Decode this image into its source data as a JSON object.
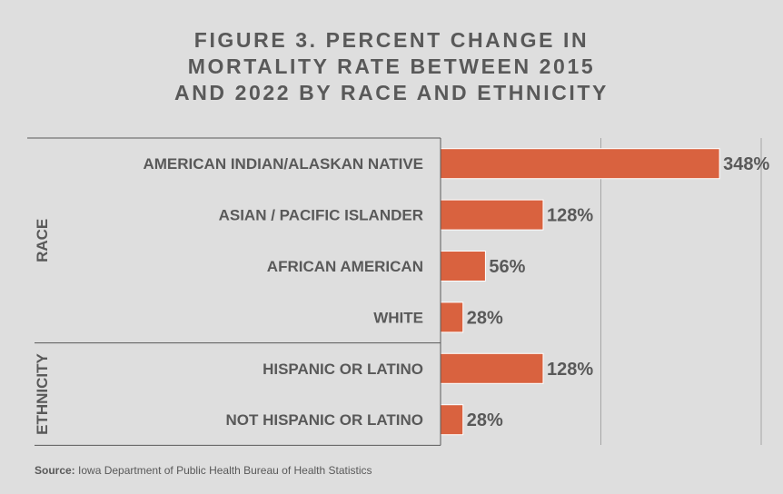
{
  "title_lines": [
    "FIGURE 3. PERCENT CHANGE IN",
    "MORTALITY RATE BETWEEN 2015",
    "AND 2022 BY RACE AND ETHNICITY"
  ],
  "source": {
    "label": "Source:",
    "text": " Iowa Department of Public Health Bureau of Health Statistics"
  },
  "colors": {
    "background": "#dedede",
    "bar": "#d9623f",
    "text": "#595959",
    "grid": "#a6a6a6"
  },
  "chart_data": {
    "type": "bar",
    "orientation": "horizontal",
    "groups": [
      {
        "name": "RACE",
        "categories": [
          "AMERICAN INDIAN/ALASKAN NATIVE",
          "ASIAN / PACIFIC ISLANDER",
          "AFRICAN AMERICAN",
          "WHITE"
        ],
        "values": [
          348,
          128,
          56,
          28
        ],
        "labels": [
          "348%",
          "128%",
          "56%",
          "28%"
        ]
      },
      {
        "name": "ETHNICITY",
        "categories": [
          "HISPANIC OR LATINO",
          "NOT HISPANIC OR LATINO"
        ],
        "values": [
          128,
          28
        ],
        "labels": [
          "128%",
          "28%"
        ]
      }
    ],
    "unit": "%",
    "xlim": [
      0,
      400
    ],
    "x_gridlines": [
      200,
      400
    ],
    "grid": true,
    "legend": "none"
  }
}
